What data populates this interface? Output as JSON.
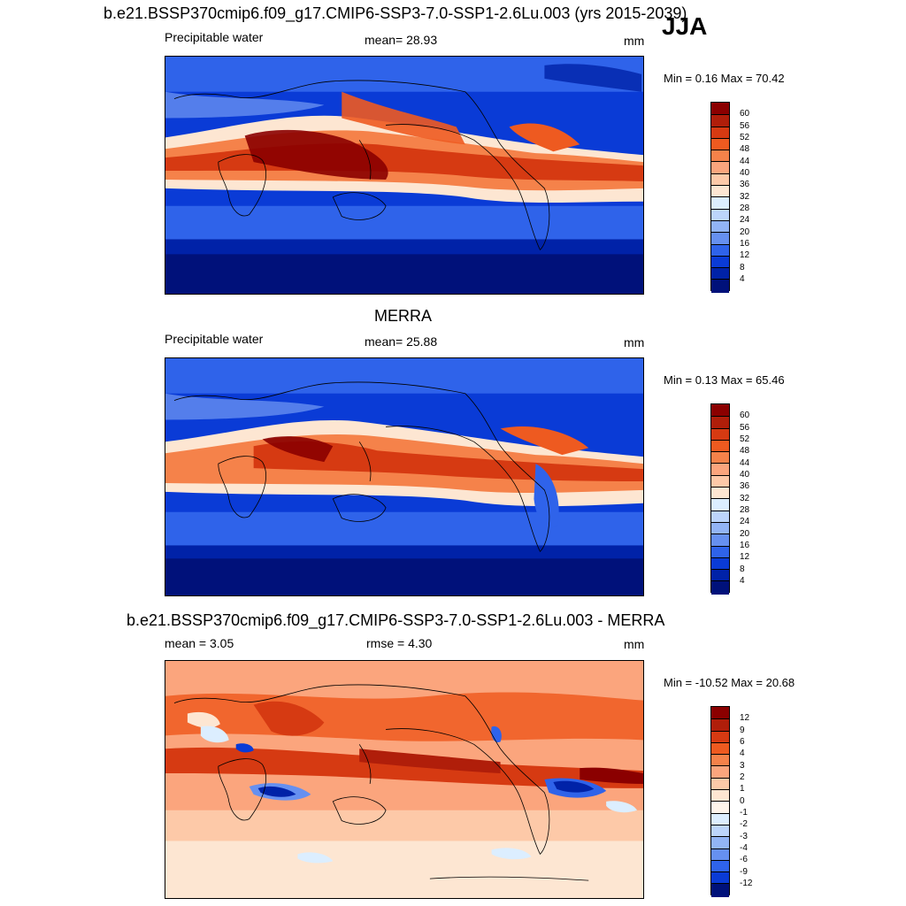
{
  "season": "JJA",
  "panels": [
    {
      "title": "b.e21.BSSP370cmip6.f09_g17.CMIP6-SSP3-7.0-SSP1-2.6Lu.003 (yrs 2015-2039)",
      "left_label": "Precipitable water",
      "center_label": "mean=  28.93",
      "units": "mm",
      "minmax": "Min =   0.16 Max =  70.42",
      "levels": [
        "60",
        "56",
        "52",
        "48",
        "44",
        "40",
        "36",
        "32",
        "28",
        "24",
        "20",
        "16",
        "12",
        "8",
        "4"
      ]
    },
    {
      "title": "MERRA",
      "left_label": "Precipitable water",
      "center_label": "mean=  25.88",
      "units": "mm",
      "minmax": "Min =   0.13 Max =  65.46",
      "levels": [
        "60",
        "56",
        "52",
        "48",
        "44",
        "40",
        "36",
        "32",
        "28",
        "24",
        "20",
        "16",
        "12",
        "8",
        "4"
      ]
    },
    {
      "title": "b.e21.BSSP370cmip6.f09_g17.CMIP6-SSP3-7.0-SSP1-2.6Lu.003 - MERRA",
      "left_label": "mean =   3.05",
      "center_label": "rmse =   4.30",
      "units": "mm",
      "minmax": "Min = -10.52 Max =  20.68",
      "levels": [
        "12",
        "9",
        "6",
        "4",
        "3",
        "2",
        "1",
        "0",
        "-1",
        "-2",
        "-3",
        "-4",
        "-6",
        "-9",
        "-12"
      ]
    }
  ],
  "colors": {
    "abs_scale": [
      "#8b0000",
      "#b01e0a",
      "#d63a12",
      "#ee5a20",
      "#f5824a",
      "#fba57d",
      "#fdc9a8",
      "#fde6d2",
      "#dceeff",
      "#bcd5fb",
      "#92b4f5",
      "#6690f0",
      "#2f63ea",
      "#0a3bd6",
      "#0022a8",
      "#00117a"
    ],
    "diff_scale": [
      "#8b0000",
      "#b01e0a",
      "#d63a12",
      "#ee5a20",
      "#f5824a",
      "#fba57d",
      "#fdc9a8",
      "#fde6d2",
      "#fff5ec",
      "#dceeff",
      "#bcd5fb",
      "#92b4f5",
      "#6690f0",
      "#2f63ea",
      "#0a3bd6",
      "#00117a"
    ]
  }
}
